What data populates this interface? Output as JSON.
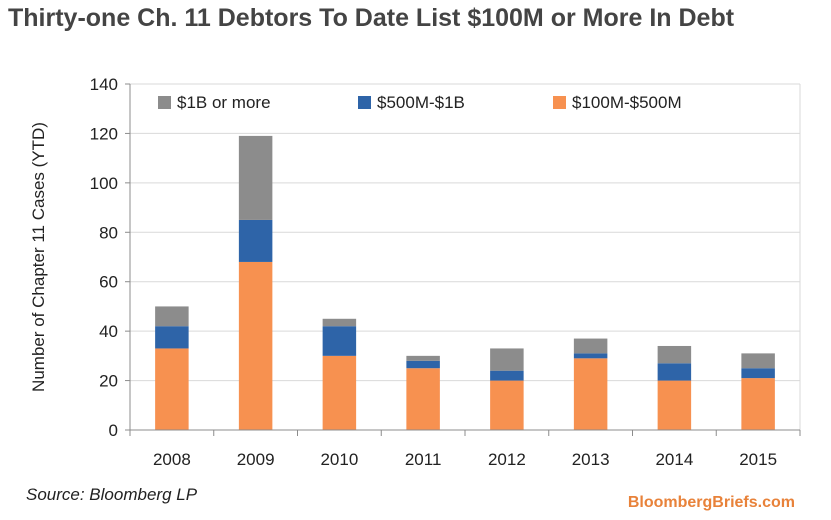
{
  "title": "Thirty-one Ch. 11 Debtors To Date List $100M or More In Debt",
  "source": "Source: Bloomberg LP",
  "brand": "BloombergBriefs.com",
  "colors": {
    "brand": "#e8823a",
    "title": "#444444"
  },
  "chart_data": {
    "type": "bar",
    "stacked": true,
    "title": "Thirty-one Ch. 11 Debtors To Date List $100M or More In Debt",
    "xlabel": "",
    "ylabel": "Number of Chapter 11 Cases (YTD)",
    "categories": [
      "2008",
      "2009",
      "2010",
      "2011",
      "2012",
      "2013",
      "2014",
      "2015"
    ],
    "ylim": [
      0,
      140
    ],
    "yticks": [
      0,
      20,
      40,
      60,
      80,
      100,
      120,
      140
    ],
    "grid": true,
    "legend_position": "top",
    "series": [
      {
        "name": "$100M-$500M",
        "color": "#f79150",
        "values": [
          33,
          68,
          30,
          25,
          20,
          29,
          20,
          21
        ]
      },
      {
        "name": "$500M-$1B",
        "color": "#2e64a8",
        "values": [
          9,
          17,
          12,
          3,
          4,
          2,
          7,
          4
        ]
      },
      {
        "name": "$1B or more",
        "color": "#8c8c8c",
        "values": [
          8,
          34,
          3,
          2,
          9,
          6,
          7,
          6
        ]
      }
    ],
    "legend_order": [
      "$1B or more",
      "$500M-$1B",
      "$100M-$500M"
    ]
  }
}
